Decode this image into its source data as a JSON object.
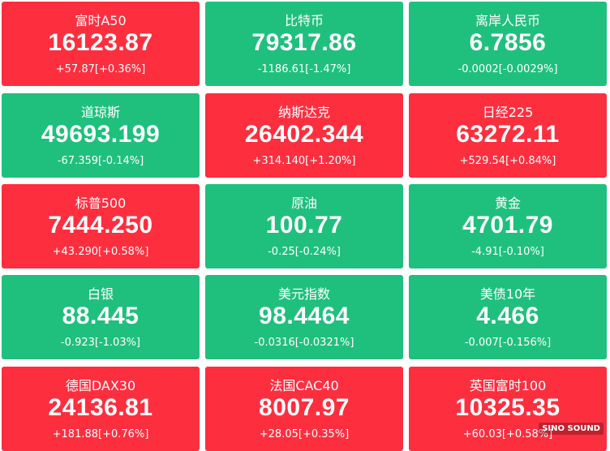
{
  "tiles": [
    {
      "name": "富时A50",
      "price": "16123.87",
      "change": "+57.87[+0.36%]",
      "color": "#fd2f3e"
    },
    {
      "name": "比特币",
      "price": "79317.86",
      "change": "-1186.61[-1.47%]",
      "color": "#1fc07d"
    },
    {
      "name": "离岸人民币",
      "price": "6.7856",
      "change": "-0.0002[-0.0029%]",
      "color": "#1fc07d"
    },
    {
      "name": "道琼斯",
      "price": "49693.199",
      "change": "-67.359[-0.14%]",
      "color": "#1fc07d"
    },
    {
      "name": "纳斯达克",
      "price": "26402.344",
      "change": "+314.140[+1.20%]",
      "color": "#fd2f3e"
    },
    {
      "name": "日经225",
      "price": "63272.11",
      "change": "+529.54[+0.84%]",
      "color": "#fd2f3e"
    },
    {
      "name": "标普500",
      "price": "7444.250",
      "change": "+43.290[+0.58%]",
      "color": "#fd2f3e"
    },
    {
      "name": "原油",
      "price": "100.77",
      "change": "-0.25[-0.24%]",
      "color": "#1fc07d"
    },
    {
      "name": "黄金",
      "price": "4701.79",
      "change": "-4.91[-0.10%]",
      "color": "#1fc07d"
    },
    {
      "name": "白银",
      "price": "88.445",
      "change": "-0.923[-1.03%]",
      "color": "#1fc07d"
    },
    {
      "name": "美元指数",
      "price": "98.4464",
      "change": "-0.0316[-0.0321%]",
      "color": "#1fc07d"
    },
    {
      "name": "美债10年",
      "price": "4.466",
      "change": "-0.007[-0.156%]",
      "color": "#1fc07d"
    },
    {
      "name": "德国DAX30",
      "price": "24136.81",
      "change": "+181.88[+0.76%]",
      "color": "#fd2f3e"
    },
    {
      "name": "法国CAC40",
      "price": "8007.97",
      "change": "+28.05[+0.35%]",
      "color": "#fd2f3e"
    },
    {
      "name": "英国富时100",
      "price": "10325.35",
      "change": "+60.03[+0.58%]",
      "color": "#fd2f3e"
    }
  ],
  "watermark": "SINO SOUND"
}
